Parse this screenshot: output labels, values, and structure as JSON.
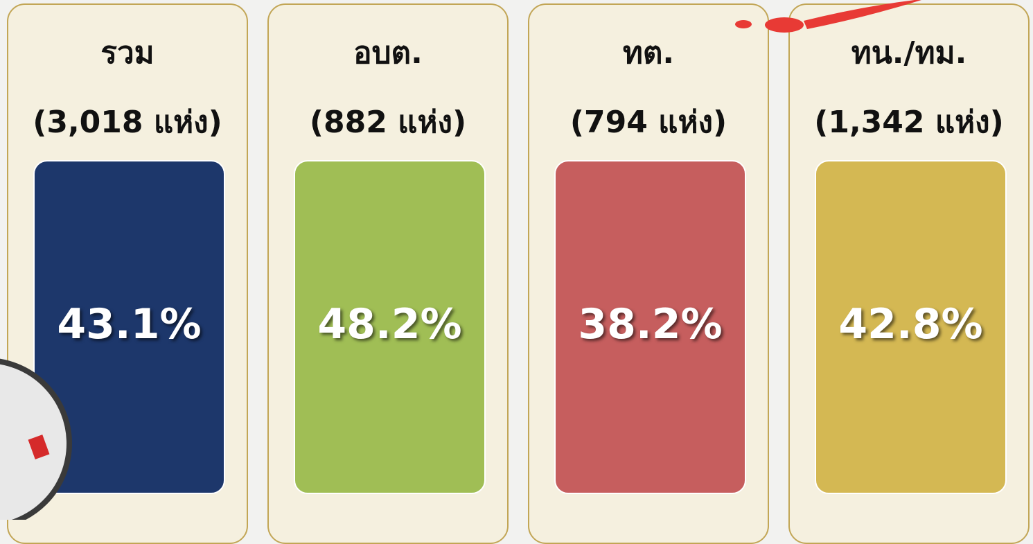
{
  "cards": [
    {
      "title": "รวม",
      "subtitle": "(3,018 แห่ง)",
      "value": "43.1%",
      "color": "#1d376b"
    },
    {
      "title": "อบต.",
      "subtitle": "(882 แห่ง)",
      "value": "48.2%",
      "color": "#a0be55"
    },
    {
      "title": "ทต.",
      "subtitle": "(794 แห่ง)",
      "value": "38.2%",
      "color": "#c65e5e"
    },
    {
      "title": "ทน./ทม.",
      "subtitle": "(1,342 แห่ง)",
      "value": "42.8%",
      "color": "#d4b853"
    }
  ]
}
